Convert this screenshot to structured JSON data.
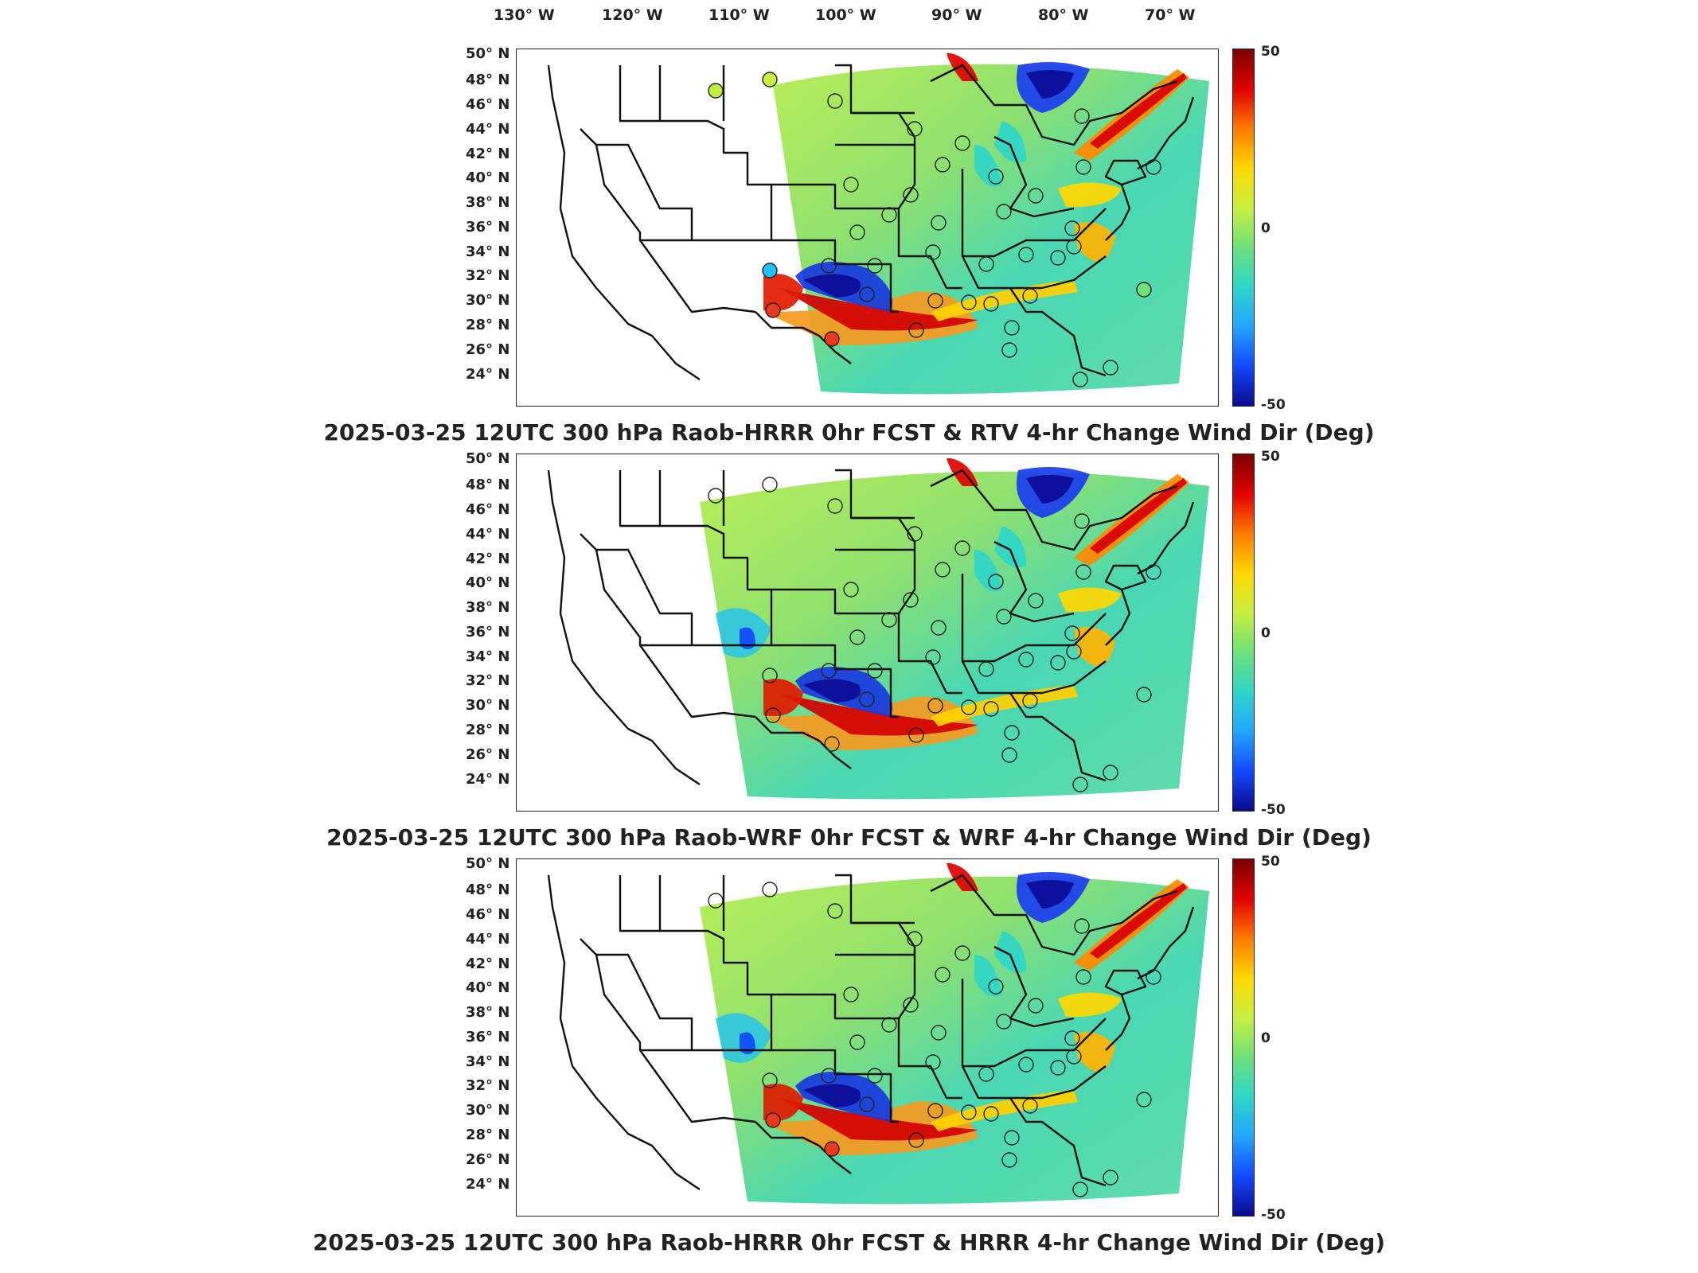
{
  "longitude_labels": [
    "130° W",
    "120° W",
    "110° W",
    "100° W",
    "90° W",
    "80° W",
    "70° W"
  ],
  "latitude_labels": [
    "50° N",
    "48° N",
    "46° N",
    "44° N",
    "42° N",
    "40° N",
    "38° N",
    "36° N",
    "34° N",
    "32° N",
    "30° N",
    "28° N",
    "26° N",
    "24° N"
  ],
  "colorbar": {
    "max_label": "50",
    "mid_label": "0",
    "min_label": "-50",
    "colors": [
      "#7a0000",
      "#e10000",
      "#ff7a00",
      "#ffd800",
      "#c8f040",
      "#6ee07a",
      "#2fd6c8",
      "#22a6ff",
      "#1448ff",
      "#0a0a8c"
    ]
  },
  "panels": [
    {
      "title": "2025-03-25 12UTC 300 hPa Raob-HRRR 0hr FCST & RTV 4-hr Change Wind Dir (Deg)"
    },
    {
      "title": "2025-03-25 12UTC 300 hPa Raob-WRF 0hr FCST & WRF 4-hr Change Wind Dir (Deg)"
    },
    {
      "title": "2025-03-25 12UTC 300 hPa Raob-HRRR 0hr FCST & HRRR 4-hr Change Wind Dir (Deg)"
    }
  ]
}
